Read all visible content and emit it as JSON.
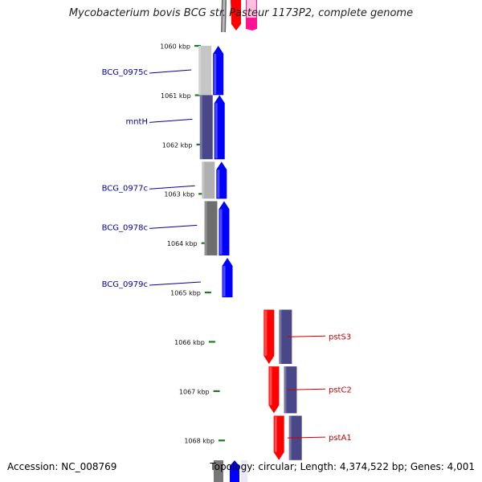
{
  "title": "Mycobacterium bovis BCG str. Pasteur 1173P2, complete genome",
  "footer": {
    "accession": "Accession: NC_008769",
    "topology": "Topology: circular; Length: 4,374,522 bp; Genes: 4,001"
  },
  "colors": {
    "backbone": "#8a8a8a",
    "tick": "#1e7a1e",
    "forward_label": "#0000aa",
    "reverse_label": "#cc0000",
    "forward_gene": "#0000ff",
    "reverse_gene": "#ff0000",
    "cog_purple": "#4a4788"
  },
  "scale_ticks": [
    {
      "label": "1060 kbp",
      "kbp": 1060
    },
    {
      "label": "1061 kbp",
      "kbp": 1061
    },
    {
      "label": "1062 kbp",
      "kbp": 1062
    },
    {
      "label": "1063 kbp",
      "kbp": 1063
    },
    {
      "label": "1064 kbp",
      "kbp": 1064
    },
    {
      "label": "1065 kbp",
      "kbp": 1065
    },
    {
      "label": "1066 kbp",
      "kbp": 1066
    },
    {
      "label": "1067 kbp",
      "kbp": 1067
    },
    {
      "label": "1068 kbp",
      "kbp": 1068
    }
  ],
  "genes": [
    {
      "name": "BCG_0975c",
      "strand": "forward",
      "start_kbp": 1060.0,
      "end_kbp": 1061.0,
      "cog_color": "#c6c6c6"
    },
    {
      "name": "mntH",
      "strand": "forward",
      "start_kbp": 1061.0,
      "end_kbp": 1062.3,
      "cog_color": "#4a4788"
    },
    {
      "name": "BCG_0977c",
      "strand": "forward",
      "start_kbp": 1062.35,
      "end_kbp": 1063.1,
      "cog_color": "#b0b0b0"
    },
    {
      "name": "BCG_0978c",
      "strand": "forward",
      "start_kbp": 1063.15,
      "end_kbp": 1064.25,
      "cog_color": "#6e6e6e"
    },
    {
      "name": "BCG_0979c",
      "strand": "forward",
      "start_kbp": 1064.3,
      "end_kbp": 1065.1,
      "cog_color": null
    },
    {
      "name": "pstS3",
      "strand": "reverse",
      "start_kbp": 1065.35,
      "end_kbp": 1066.45,
      "cog_color": "#4a4788"
    },
    {
      "name": "pstC2",
      "strand": "reverse",
      "start_kbp": 1066.5,
      "end_kbp": 1067.45,
      "cog_color": "#4a4788"
    },
    {
      "name": "pstA1",
      "strand": "reverse",
      "start_kbp": 1067.5,
      "end_kbp": 1068.4,
      "cog_color": "#4a4788"
    }
  ]
}
